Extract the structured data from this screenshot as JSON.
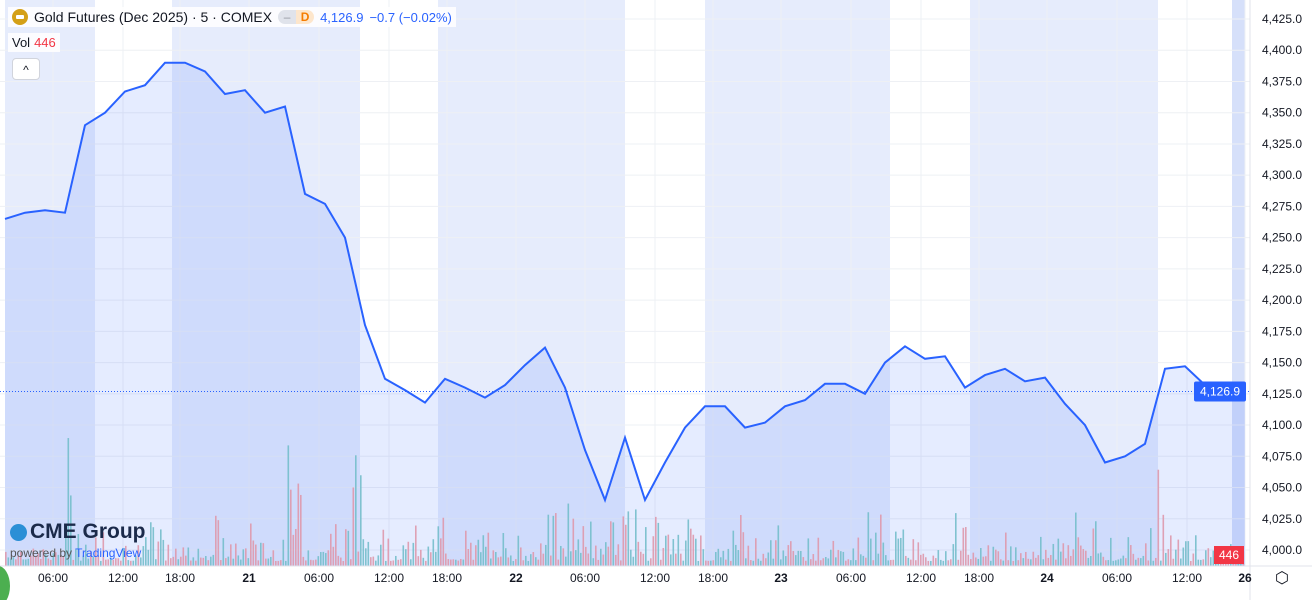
{
  "header": {
    "symbol": "Gold Futures (Dec 2025) · 5 · COMEX",
    "market_status": "D",
    "price": "4,126.9",
    "change": "−0.7 (−0.02%)"
  },
  "volume": {
    "label": "Vol",
    "value": "446"
  },
  "branding": {
    "logo": "CME Group",
    "powered_by": "powered by",
    "tradingview": "TradingView"
  },
  "colors": {
    "line": "#2962ff",
    "up_vol": "#80cbc4",
    "down_vol": "#f7a1a1",
    "session": "#dbe4fb"
  },
  "chart_data": {
    "type": "area",
    "title": "Gold Futures (Dec 2025) · 5 · COMEX",
    "ylim": [
      4000,
      4430
    ],
    "yticks": [
      "4,000.0",
      "4,025.0",
      "4,050.0",
      "4,075.0",
      "4,100.0",
      "4,125.0",
      "4,150.0",
      "4,175.0",
      "4,200.0",
      "4,225.0",
      "4,250.0",
      "4,275.0",
      "4,300.0",
      "4,325.0",
      "4,350.0",
      "4,375.0",
      "4,400.0",
      "4,425.0"
    ],
    "ytick_values": [
      4000,
      4025,
      4050,
      4075,
      4100,
      4125,
      4150,
      4175,
      4200,
      4225,
      4250,
      4275,
      4300,
      4325,
      4350,
      4375,
      4400,
      4425
    ],
    "values": [
      4265,
      4270,
      4272,
      4270,
      4340,
      4350,
      4367,
      4372,
      4390,
      4390,
      4383,
      4365,
      4368,
      4350,
      4355,
      4285,
      4277,
      4250,
      4180,
      4137,
      4128,
      4118,
      4137,
      4130,
      4122,
      4132,
      4148,
      4162,
      4130,
      4080,
      4040,
      4090,
      4040,
      4070,
      4098,
      4115,
      4115,
      4098,
      4102,
      4115,
      4120,
      4133,
      4133,
      4125,
      4150,
      4163,
      4153,
      4155,
      4130,
      4140,
      4145,
      4135,
      4138,
      4117,
      4100,
      4070,
      4075,
      4085,
      4145,
      4147,
      4132,
      4122,
      4127
    ],
    "xticks": [
      {
        "label": "06:00",
        "i": 2.4
      },
      {
        "label": "12:00",
        "i": 5.9
      },
      {
        "label": "18:00",
        "i": 8.75
      },
      {
        "label": "21",
        "i": 12.2,
        "bold": true
      },
      {
        "label": "06:00",
        "i": 15.7
      },
      {
        "label": "12:00",
        "i": 19.2
      },
      {
        "label": "18:00",
        "i": 22.1
      },
      {
        "label": "22",
        "i": 25.55,
        "bold": true
      },
      {
        "label": "06:00",
        "i": 29
      },
      {
        "label": "12:00",
        "i": 32.5
      },
      {
        "label": "18:00",
        "i": 35.4
      },
      {
        "label": "23",
        "i": 38.8,
        "bold": true
      },
      {
        "label": "06:00",
        "i": 42.3
      },
      {
        "label": "12:00",
        "i": 45.8
      },
      {
        "label": "18:00",
        "i": 48.7
      },
      {
        "label": "24",
        "i": 52.1,
        "bold": true
      },
      {
        "label": "06:00",
        "i": 55.6
      },
      {
        "label": "12:00",
        "i": 59.1
      },
      {
        "label": "26",
        "i": 62,
        "bold": true
      }
    ],
    "sessions": [
      [
        0,
        4.5
      ],
      [
        8.35,
        17.75
      ],
      [
        21.65,
        31
      ],
      [
        35,
        44.25
      ],
      [
        48.25,
        57.65
      ],
      [
        61.35,
        62
      ]
    ],
    "last_price": 4126.9,
    "last_price_label": "4,126.9",
    "last_volume_label": "446"
  }
}
